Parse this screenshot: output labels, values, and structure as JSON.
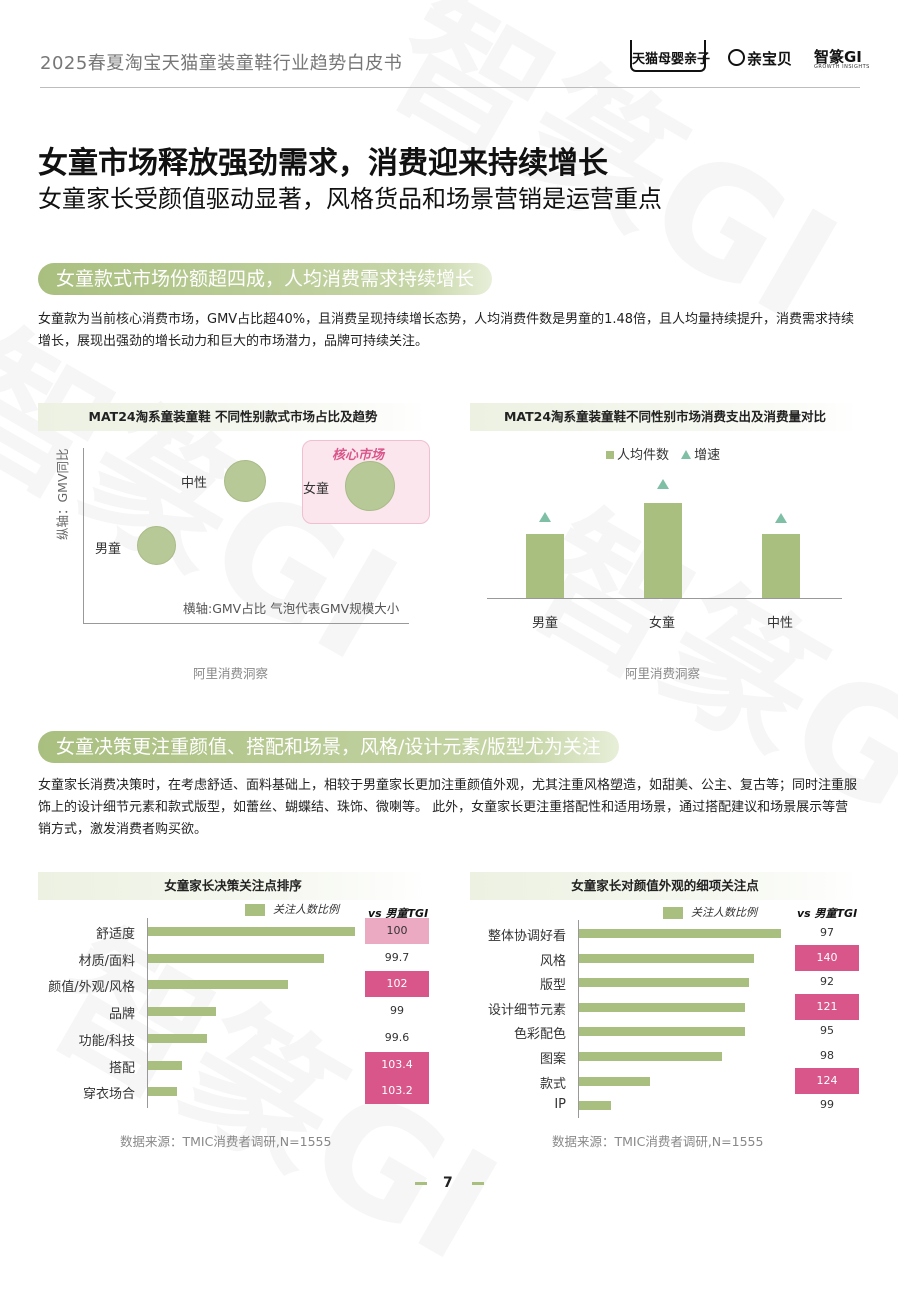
{
  "header": {
    "report_title": "2025春夏淘宝天猫童装童鞋行业趋势白皮书",
    "logos": [
      "天猫母婴亲子",
      "亲宝贝",
      "智篆GI"
    ],
    "logo_sub": "GROWTH INSIGHTS"
  },
  "title": {
    "main": "女童市场释放强劲需求，消费迎来持续增长",
    "sub": "女童家长受颜值驱动显著，风格货品和场景营销是运营重点"
  },
  "section1": {
    "pill": "女童款式市场份额超四成，人均消费需求持续增长",
    "paragraph": "女童款为当前核心消费市场，GMV占比超40%，且消费呈现持续增长态势，人均消费件数是男童的1.48倍，且人均量持续提升，消费需求持续增长，展现出强劲的增长动力和巨大的市场潜力，品牌可持续关注。"
  },
  "chart_bubble": {
    "title": "MAT24淘系童装童鞋 不同性别款式市场占比及趋势",
    "core_label": "核心市场",
    "y_axis_label": "纵轴：GMV同比",
    "x_axis_label": "横轴:GMV占比  气泡代表GMV规模大小",
    "source": "阿里消费洞察",
    "chart_data": {
      "type": "scatter",
      "points": [
        {
          "label": "男童",
          "x": 1,
          "y": 1,
          "size": 1
        },
        {
          "label": "中性",
          "x": 2,
          "y": 2,
          "size": 1.1
        },
        {
          "label": "女童",
          "x": 3.2,
          "y": 2,
          "size": 1.3
        }
      ],
      "xlim": [
        0,
        4
      ],
      "ylim": [
        0,
        3
      ]
    }
  },
  "chart_col": {
    "title": "MAT24淘系童装童鞋不同性别市场消费支出及消费量对比",
    "legend": [
      "人均件数",
      "增速"
    ],
    "source": "阿里消费洞察",
    "chart_data": {
      "type": "bar",
      "categories": [
        "男童",
        "女童",
        "中性"
      ],
      "series": [
        {
          "name": "人均件数",
          "values": [
            1.0,
            1.48,
            1.0
          ]
        },
        {
          "name": "增速",
          "values": [
            1.2,
            1.4,
            1.1
          ]
        }
      ],
      "ylim": [
        0,
        2.0
      ]
    }
  },
  "section2": {
    "pill": "女童决策更注重颜值、搭配和场景，风格/设计元素/版型尤为关注",
    "paragraph": "女童家长消费决策时，在考虑舒适、面料基础上，相较于男童家长更加注重颜值外观，尤其注重风格塑造，如甜美、公主、复古等；同时注重服饰上的设计细节元素和款式版型，如蕾丝、蝴蝶结、珠饰、微喇等。 此外，女童家长更注重搭配性和适用场景，通过搭配建议和场景展示等营销方式，激发消费者购买欲。"
  },
  "chart_rank1": {
    "title": "女童家长决策关注点排序",
    "legend": "关注人数比例",
    "tgi_label": "vs 男童TGI",
    "source": "数据来源：TMIC消费者调研,N=1555",
    "chart_data": {
      "type": "bar",
      "categories": [
        "舒适度",
        "材质/面料",
        "颜值/外观/风格",
        "品牌",
        "功能/科技",
        "搭配",
        "穿衣场合"
      ],
      "series": [
        {
          "name": "关注人数比例",
          "values": [
            0.92,
            0.78,
            0.62,
            0.3,
            0.26,
            0.15,
            0.13
          ]
        },
        {
          "name": "vs 男童TGI",
          "values": [
            100,
            99.7,
            102,
            99,
            99.6,
            103.4,
            103.2
          ]
        }
      ],
      "tgi_text": [
        "100",
        "99.7",
        "102",
        "99",
        "99.6",
        "103.4",
        "103.2"
      ],
      "highlight": [
        "light",
        "none",
        "pink",
        "none",
        "none",
        "pink",
        "pink"
      ]
    }
  },
  "chart_rank2": {
    "title": "女童家长对颜值外观的细项关注点",
    "legend": "关注人数比例",
    "tgi_label": "vs 男童TGI",
    "source": "数据来源：TMIC消费者调研,N=1555",
    "chart_data": {
      "type": "bar",
      "categories": [
        "整体协调好看",
        "风格",
        "版型",
        "设计细节元素",
        "色彩配色",
        "图案",
        "款式",
        "IP"
      ],
      "series": [
        {
          "name": "关注人数比例",
          "values": [
            0.88,
            0.76,
            0.74,
            0.72,
            0.72,
            0.62,
            0.31,
            0.14
          ]
        },
        {
          "name": "vs 男童TGI",
          "values": [
            97,
            140,
            92,
            121,
            95,
            98,
            124,
            99
          ]
        }
      ],
      "tgi_text": [
        "97",
        "140",
        "92",
        "121",
        "95",
        "98",
        "124",
        "99"
      ],
      "highlight": [
        "none",
        "pink",
        "none",
        "pink",
        "none",
        "none",
        "pink",
        "none"
      ]
    }
  },
  "footer": {
    "page": "7"
  },
  "colors": {
    "bar": "#a9bf7f",
    "pink": "#d9568a",
    "light_pink": "#eba9c2",
    "tri": "#7fbfa6"
  }
}
